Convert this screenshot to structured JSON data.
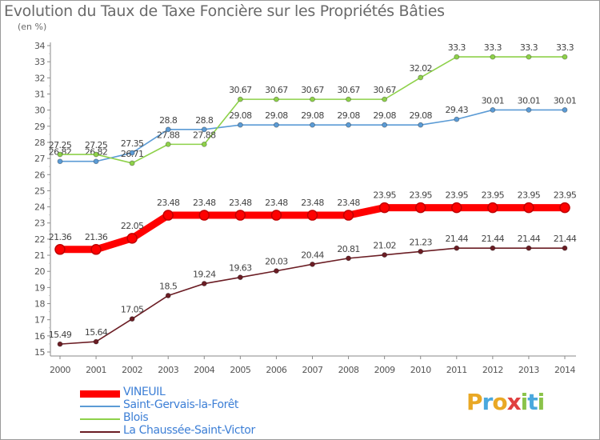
{
  "title": "Evolution du Taux de Taxe Foncière sur les Propriétés Bâties",
  "unit": "(en %)",
  "logo": {
    "letters": [
      "P",
      "r",
      "o",
      "x",
      "i",
      "t",
      "i"
    ],
    "colors": [
      "#e9a825",
      "#4aa8de",
      "#e9a825",
      "#e04040",
      "#8bc34a",
      "#4aa8de",
      "#8bc34a"
    ]
  },
  "chart_data": {
    "type": "line",
    "x": [
      2000,
      2001,
      2002,
      2003,
      2004,
      2005,
      2006,
      2007,
      2008,
      2009,
      2010,
      2011,
      2012,
      2013,
      2014
    ],
    "ylim": [
      15,
      34
    ],
    "yticks": [
      15,
      16,
      17,
      18,
      19,
      20,
      21,
      22,
      23,
      24,
      25,
      26,
      27,
      28,
      29,
      30,
      31,
      32,
      33,
      34
    ],
    "grid": false,
    "legend": "bottom-left",
    "series": [
      {
        "name": "VINEUIL",
        "color": "#ff0000",
        "emphasis": true,
        "values": [
          21.36,
          21.36,
          22.05,
          23.48,
          23.48,
          23.48,
          23.48,
          23.48,
          23.48,
          23.95,
          23.95,
          23.95,
          23.95,
          23.95,
          23.95
        ],
        "labels": [
          "21.36",
          "21.36",
          "22.05",
          "23.48",
          "23.48",
          "23.48",
          "23.48",
          "23.48",
          "23.48",
          "23.95",
          "23.95",
          "23.95",
          "23.95",
          "23.95",
          "23.95"
        ]
      },
      {
        "name": "Saint-Gervais-la-Forêt",
        "color": "#5b9bd5",
        "values": [
          26.82,
          26.82,
          27.35,
          28.8,
          28.8,
          29.08,
          29.08,
          29.08,
          29.08,
          29.08,
          29.08,
          29.43,
          30.01,
          30.01,
          30.01
        ],
        "labels": [
          "26.82",
          "26.82",
          "27.35",
          "28.8",
          "28.8",
          "29.08",
          "29.08",
          "29.08",
          "29.08",
          "29.08",
          "29.08",
          "29.43",
          "30.01",
          "30.01",
          "30.01"
        ]
      },
      {
        "name": "Blois",
        "color": "#8ed14a",
        "values": [
          27.25,
          27.25,
          26.71,
          27.88,
          27.88,
          30.67,
          30.67,
          30.67,
          30.67,
          30.67,
          32.02,
          33.3,
          33.3,
          33.3,
          33.3
        ],
        "labels": [
          "27.25",
          "27.25",
          "26.71",
          "27.88",
          "27.88",
          "30.67",
          "30.67",
          "30.67",
          "30.67",
          "30.67",
          "32.02",
          "33.3",
          "33.3",
          "33.3",
          "33.3"
        ]
      },
      {
        "name": "La Chaussée-Saint-Victor",
        "color": "#6b1d24",
        "values": [
          15.49,
          15.64,
          17.05,
          18.5,
          19.24,
          19.63,
          20.03,
          20.44,
          20.81,
          21.02,
          21.23,
          21.44,
          21.44,
          21.44,
          21.44
        ],
        "labels": [
          "15.49",
          "15.64",
          "17.05",
          "18.5",
          "19.24",
          "19.63",
          "20.03",
          "20.44",
          "20.81",
          "21.02",
          "21.23",
          "21.44",
          "21.44",
          "21.44",
          "21.44"
        ]
      }
    ]
  }
}
